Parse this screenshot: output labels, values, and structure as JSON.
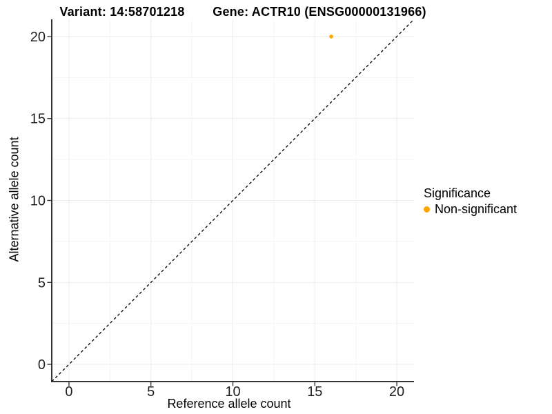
{
  "chart_data": {
    "type": "scatter",
    "titles": [
      "Variant: 14:58701218",
      "Gene: ACTR10 (ENSG00000131966)"
    ],
    "xlabel": "Reference allele count",
    "ylabel": "Alternative allele count",
    "xlim": [
      -1.05,
      21.05
    ],
    "ylim": [
      -1.05,
      21.05
    ],
    "xticks": [
      0,
      5,
      10,
      15,
      20
    ],
    "yticks": [
      0,
      5,
      10,
      15,
      20
    ],
    "grid": {
      "major": true,
      "minor": true
    },
    "series": [
      {
        "name": "Non-significant",
        "color": "#FFA500",
        "marker": "circle",
        "points": [
          {
            "x": 16,
            "y": 20
          }
        ]
      }
    ],
    "reference_line": {
      "slope": 1,
      "intercept": 0,
      "style": "dashed",
      "color": "#000000"
    },
    "legend": {
      "position": "right",
      "title": "Significance",
      "entries": [
        {
          "label": "Non-significant",
          "color": "#FFA500",
          "marker": "circle"
        }
      ]
    }
  },
  "colors": {
    "background": "#FFFFFF",
    "axis_line": "#333333",
    "tick_mark": "#333333",
    "tick_label": "#1F1F1F",
    "grid_major": "#EBEBEB",
    "grid_minor": "#F5F5F5",
    "title_text": "#000000",
    "point": "#FFA500"
  }
}
